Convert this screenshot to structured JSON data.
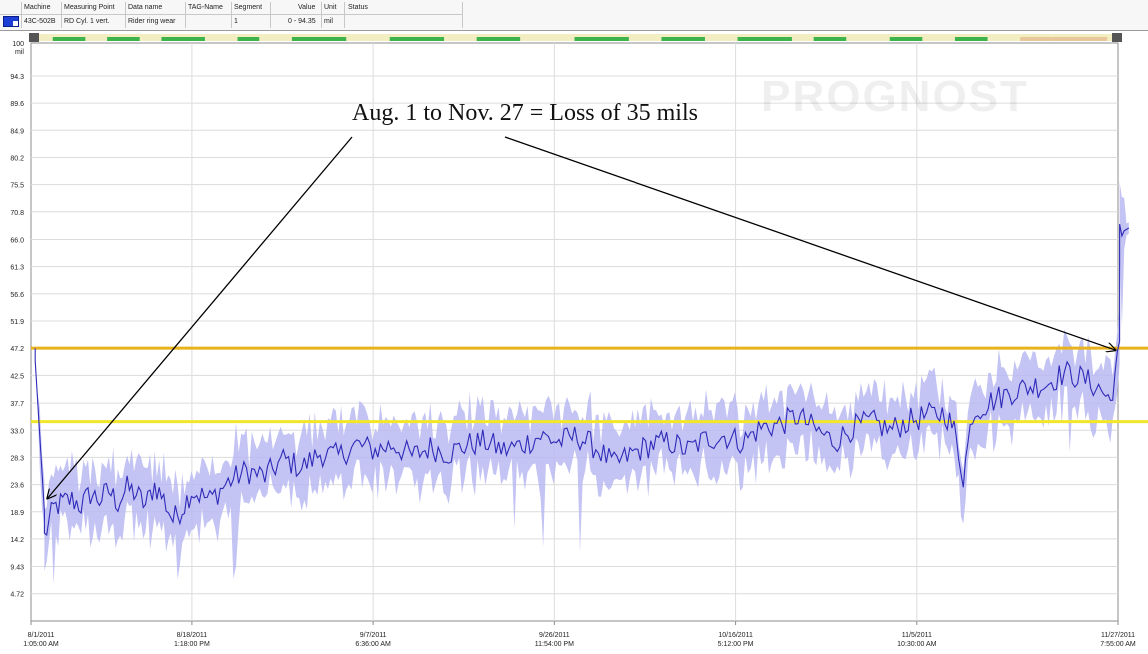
{
  "header": {
    "columns": [
      "Machine",
      "Measuring Point",
      "Data name",
      "TAG-Name",
      "Segment",
      "Value",
      "Unit",
      "Status"
    ],
    "row": {
      "machine": "43C-502B",
      "measuring_point": "RD Cyl. 1 vert.",
      "data_name": "Rider ring wear",
      "tag_name": "",
      "segment": "1",
      "value": "0 - 94.35",
      "unit": "mil",
      "status": ""
    }
  },
  "watermark": "PROGNOST",
  "chart_data": {
    "type": "line",
    "ylim": [
      0,
      100
    ],
    "yunit": "mil",
    "yticks": [
      "100",
      "94.3",
      "89.6",
      "84.9",
      "80.2",
      "75.5",
      "70.8",
      "66.0",
      "61.3",
      "56.6",
      "51.9",
      "47.2",
      "42.5",
      "37.7",
      "33.0",
      "28.3",
      "23.6",
      "18.9",
      "14.2",
      "9.43",
      "4.72"
    ],
    "xtick_labels": [
      {
        "date": "8/1/2011",
        "time": "1:05:00 AM"
      },
      {
        "date": "8/18/2011",
        "time": "1:18:00 PM"
      },
      {
        "date": "9/7/2011",
        "time": "6:36:00 AM"
      },
      {
        "date": "9/26/2011",
        "time": "11:54:00 PM"
      },
      {
        "date": "10/16/2011",
        "time": "5:12:00 PM"
      },
      {
        "date": "11/5/2011",
        "time": "10:30:00 AM"
      },
      {
        "date": "11/27/2011",
        "time": "7:55:00 AM"
      }
    ],
    "thresholds": [
      {
        "value": 47.2,
        "color": "#e8b21c"
      },
      {
        "value": 34.5,
        "color": "#f2e629"
      }
    ],
    "annotation": "Aug. 1 to Nov. 27 = Loss of 35 mils",
    "series": [
      {
        "color": "#2e2ab8",
        "band_color": "#b8b8f2",
        "points": [
          [
            "8/1/2011",
            47.2
          ],
          [
            "8/1/2011",
            45.0
          ],
          [
            "8/2/2011",
            19.0
          ],
          [
            "8/2/2011",
            14.5
          ],
          [
            "8/3/2011",
            19.5
          ],
          [
            "8/4/2011",
            20.5
          ],
          [
            "8/5/2011",
            21.0
          ],
          [
            "8/6/2011",
            20.0
          ],
          [
            "8/7/2011",
            22.0
          ],
          [
            "8/8/2011",
            21.0
          ],
          [
            "8/9/2011",
            22.5
          ],
          [
            "8/10/2011",
            20.5
          ],
          [
            "8/11/2011",
            23.0
          ],
          [
            "8/12/2011",
            22.0
          ],
          [
            "8/13/2011",
            20.0
          ],
          [
            "8/14/2011",
            23.5
          ],
          [
            "8/15/2011",
            21.0
          ],
          [
            "8/16/2011",
            17.5
          ],
          [
            "8/17/2011",
            19.5
          ],
          [
            "8/18/2011",
            22.5
          ],
          [
            "8/20/2011",
            21.0
          ],
          [
            "8/22/2011",
            24.0
          ],
          [
            "8/24/2011",
            26.0
          ],
          [
            "8/26/2011",
            25.0
          ],
          [
            "8/28/2011",
            28.0
          ],
          [
            "8/30/2011",
            26.5
          ],
          [
            "9/1/2011",
            29.0
          ],
          [
            "9/3/2011",
            28.5
          ],
          [
            "9/5/2011",
            30.5
          ],
          [
            "9/7/2011",
            29.5
          ],
          [
            "9/9/2011",
            30.5
          ],
          [
            "9/11/2011",
            28.5
          ],
          [
            "9/13/2011",
            30.0
          ],
          [
            "9/15/2011",
            29.0
          ],
          [
            "9/17/2011",
            30.5
          ],
          [
            "9/19/2011",
            31.0
          ],
          [
            "9/21/2011",
            29.5
          ],
          [
            "9/23/2011",
            30.5
          ],
          [
            "9/25/2011",
            32.0
          ],
          [
            "9/27/2011",
            31.0
          ],
          [
            "9/29/2011",
            32.0
          ],
          [
            "10/1/2011",
            30.0
          ],
          [
            "10/3/2011",
            27.0
          ],
          [
            "10/5/2011",
            29.0
          ],
          [
            "10/7/2011",
            30.5
          ],
          [
            "10/9/2011",
            31.0
          ],
          [
            "10/11/2011",
            29.5
          ],
          [
            "10/13/2011",
            31.5
          ],
          [
            "10/15/2011",
            32.0
          ],
          [
            "10/17/2011",
            31.0
          ],
          [
            "10/19/2011",
            33.5
          ],
          [
            "10/21/2011",
            34.0
          ],
          [
            "10/23/2011",
            35.5
          ],
          [
            "10/25/2011",
            33.0
          ],
          [
            "10/27/2011",
            31.0
          ],
          [
            "10/29/2011",
            33.5
          ],
          [
            "10/31/2011",
            34.5
          ],
          [
            "11/2/2011",
            33.0
          ],
          [
            "11/4/2011",
            34.5
          ],
          [
            "11/6/2011",
            35.5
          ],
          [
            "11/8/2011",
            36.0
          ],
          [
            "11/9/2011",
            33.0
          ],
          [
            "11/10/2011",
            25.0
          ],
          [
            "11/11/2011",
            36.0
          ],
          [
            "11/13/2011",
            38.0
          ],
          [
            "11/15/2011",
            39.5
          ],
          [
            "11/17/2011",
            40.5
          ],
          [
            "11/19/2011",
            41.0
          ],
          [
            "11/21/2011",
            43.0
          ],
          [
            "11/23/2011",
            42.0
          ],
          [
            "11/25/2011",
            40.0
          ],
          [
            "11/26/2011",
            38.0
          ],
          [
            "11/27/2011",
            47.2
          ],
          [
            "11/27/2011",
            67.0
          ],
          [
            "11/28/2011",
            68.0
          ]
        ]
      }
    ]
  }
}
